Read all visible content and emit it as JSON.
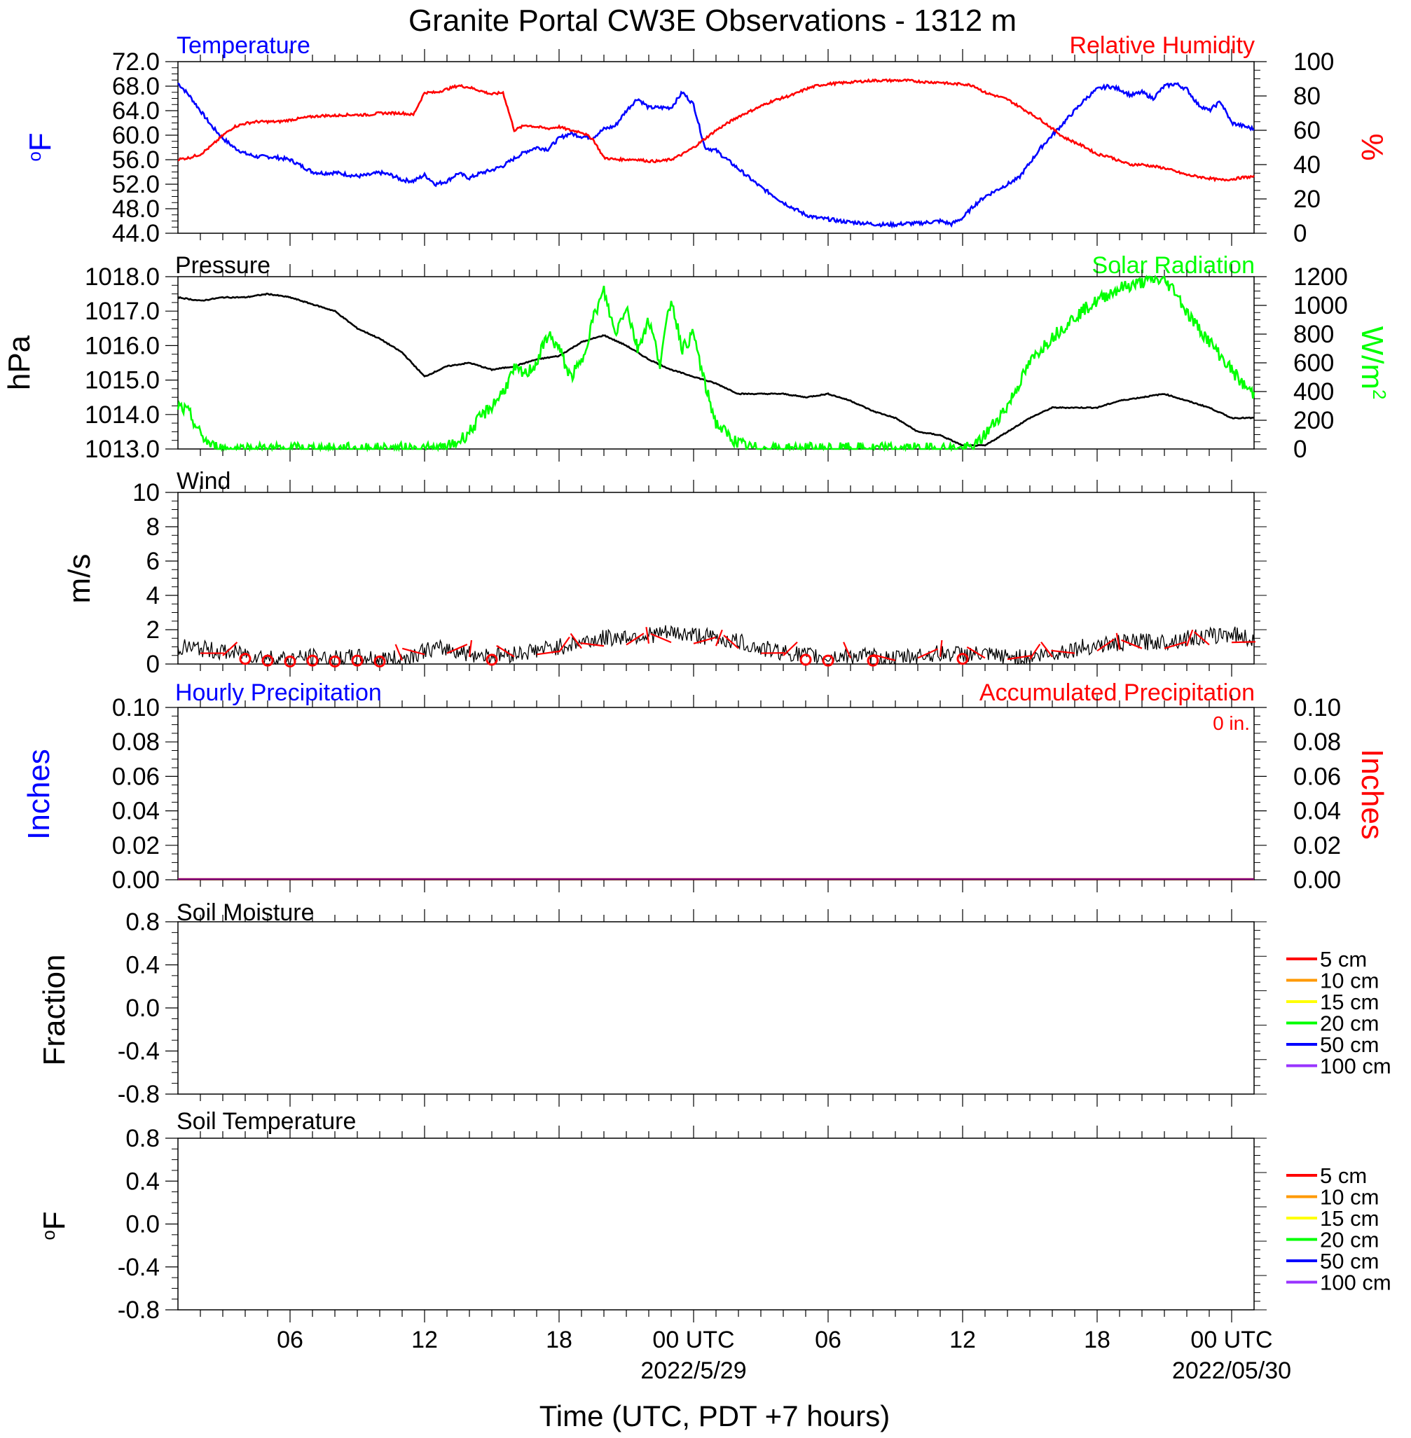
{
  "title": "Granite Portal CW3E Observations - 1312 m",
  "x_axis": {
    "label": "Time (UTC, PDT +7 hours)",
    "range_hours": [
      0,
      48
    ],
    "ticks": [
      {
        "hour": 5,
        "label": "06"
      },
      {
        "hour": 11,
        "label": "12"
      },
      {
        "hour": 17,
        "label": "18"
      },
      {
        "hour": 23,
        "label": "00 UTC"
      },
      {
        "hour": 29,
        "label": "06"
      },
      {
        "hour": 35,
        "label": "12"
      },
      {
        "hour": 41,
        "label": "18"
      },
      {
        "hour": 47,
        "label": "00 UTC"
      }
    ],
    "dates": [
      {
        "hour": 23,
        "label": "2022/5/29"
      },
      {
        "hour": 47,
        "label": "2022/05/30"
      }
    ]
  },
  "colors": {
    "temp": "#0000ff",
    "rh": "#ff0000",
    "pressure": "#000000",
    "solar": "#00ff00",
    "wind": "#000000",
    "barb": "#ff0000"
  },
  "chart_data": [
    {
      "type": "line",
      "panel": "temperature_humidity",
      "left_title": "Temperature",
      "right_title": "Relative Humidity",
      "ylabel_left": "oF",
      "ylabel_right": "%",
      "ylim_left": [
        44,
        72
      ],
      "ylim_right": [
        0,
        100
      ],
      "yticks_left": [
        "72.0",
        "68.0",
        "64.0",
        "60.0",
        "56.0",
        "52.0",
        "48.0",
        "44.0"
      ],
      "yticks_right": [
        "100",
        "80",
        "60",
        "40",
        "20",
        "0"
      ],
      "series": [
        {
          "name": "Temperature",
          "axis": "left",
          "color": "#0000ff",
          "x": [
            0,
            0.5,
            1,
            1.5,
            2,
            2.5,
            3,
            3.5,
            4,
            4.5,
            5,
            5.5,
            6,
            6.5,
            7,
            7.5,
            8,
            8.5,
            9,
            9.5,
            10,
            10.5,
            11,
            11.5,
            12,
            12.5,
            13,
            13.5,
            14,
            14.5,
            15,
            15.5,
            16,
            16.5,
            17,
            17.5,
            18,
            18.5,
            19,
            19.5,
            20,
            20.5,
            21,
            21.5,
            22,
            22.5,
            23,
            23.5,
            24,
            24.5,
            25,
            25.5,
            26,
            26.5,
            27,
            27.5,
            28,
            28.5,
            29,
            29.5,
            30,
            30.5,
            31,
            31.5,
            32,
            32.5,
            33,
            33.5,
            34,
            34.5,
            35,
            35.5,
            36,
            36.5,
            37,
            37.5,
            38,
            38.5,
            39,
            39.5,
            40,
            40.5,
            41,
            41.5,
            42,
            42.5,
            43,
            43.5,
            44,
            44.5,
            45,
            45.5,
            46,
            46.5,
            47,
            47.5,
            48
          ],
          "y": [
            68.5,
            66.5,
            64,
            61.5,
            59.5,
            58,
            57,
            56.5,
            56.5,
            56.3,
            56,
            55,
            54,
            53.8,
            53.9,
            53.6,
            53.3,
            53.5,
            53.9,
            53.5,
            52.7,
            52.5,
            53.5,
            52,
            52.5,
            53.8,
            53,
            53.8,
            54.3,
            55,
            56.2,
            57.3,
            58,
            57.7,
            59.5,
            60.3,
            59.8,
            59.6,
            61,
            61.5,
            64,
            66,
            64.5,
            64.5,
            64.5,
            67,
            65,
            58,
            57.5,
            56,
            54.5,
            53,
            51.5,
            50.3,
            49,
            48,
            47,
            46.5,
            46.3,
            46,
            45.8,
            45.7,
            45.5,
            45.4,
            45.4,
            45.6,
            45.6,
            45.8,
            46,
            45.5,
            46.5,
            48.5,
            50,
            51,
            52,
            53,
            55.5,
            58,
            60,
            62,
            64,
            66,
            67.5,
            68,
            67.5,
            66.5,
            67,
            66,
            68,
            68.4,
            67.5,
            65,
            64,
            65.5,
            62,
            61.5,
            61
          ]
        },
        {
          "name": "Relative Humidity",
          "axis": "right",
          "color": "#ff0000",
          "x": [
            0,
            0.5,
            1,
            1.5,
            2,
            2.5,
            3,
            3.5,
            4,
            4.5,
            5,
            5.5,
            6,
            6.5,
            7,
            7.5,
            8,
            8.5,
            9,
            9.5,
            10,
            10.5,
            11,
            11.5,
            12,
            12.5,
            13,
            13.5,
            14,
            14.5,
            15,
            15.5,
            16,
            16.5,
            17,
            17.5,
            18,
            18.5,
            19,
            19.5,
            20,
            20.5,
            21,
            21.5,
            22,
            22.5,
            23,
            23.5,
            24,
            24.5,
            25,
            25.5,
            26,
            26.5,
            27,
            27.5,
            28,
            28.5,
            29,
            29.5,
            30,
            30.5,
            31,
            31.5,
            32,
            32.5,
            33,
            33.5,
            34,
            34.5,
            35,
            35.5,
            36,
            36.5,
            37,
            37.5,
            38,
            38.5,
            39,
            39.5,
            40,
            40.5,
            41,
            41.5,
            42,
            42.5,
            43,
            43.5,
            44,
            44.5,
            45,
            45.5,
            46,
            46.5,
            47,
            47.5,
            48
          ],
          "y": [
            43,
            44,
            46,
            51,
            57,
            62,
            64,
            65,
            65,
            65,
            66,
            67,
            68,
            68.5,
            68.5,
            69,
            69,
            69,
            70,
            70,
            70,
            69,
            82,
            82,
            84,
            86,
            85,
            83,
            81,
            82,
            60,
            63,
            62,
            61,
            62,
            60,
            59,
            55,
            44,
            43,
            43,
            43,
            42,
            42,
            43,
            46,
            50,
            55,
            60,
            64,
            68,
            71,
            74,
            77,
            79,
            81,
            84,
            86,
            87,
            87.5,
            88,
            88.5,
            89,
            89,
            89,
            89,
            88.5,
            88,
            88,
            87,
            87,
            86,
            82,
            80,
            78,
            74,
            70,
            66,
            61,
            56,
            53,
            50,
            46,
            45,
            42,
            40,
            40,
            39,
            38,
            36,
            34,
            33,
            32,
            31,
            31.5,
            32.5,
            33
          ]
        }
      ]
    },
    {
      "type": "line",
      "panel": "pressure_solar",
      "left_title": "Pressure",
      "right_title": "Solar Radiation",
      "ylabel_left": "hPa",
      "ylabel_right": "W/m2",
      "ylim_left": [
        1013,
        1018
      ],
      "ylim_right": [
        0,
        1200
      ],
      "yticks_left": [
        "1018.0",
        "1017.0",
        "1016.0",
        "1015.0",
        "1014.0",
        "1013.0"
      ],
      "yticks_right": [
        "1200",
        "1000",
        "800",
        "600",
        "400",
        "200",
        "0"
      ],
      "series": [
        {
          "name": "Pressure",
          "axis": "left",
          "color": "#000000",
          "x": [
            0,
            1,
            2,
            3,
            4,
            5,
            6,
            7,
            8,
            9,
            10,
            11,
            12,
            13,
            14,
            15,
            16,
            17,
            18,
            19,
            20,
            21,
            22,
            23,
            24,
            25,
            26,
            27,
            28,
            29,
            30,
            31,
            32,
            33,
            34,
            35,
            36,
            37,
            38,
            39,
            40,
            41,
            42,
            43,
            44,
            45,
            46,
            47,
            48
          ],
          "y": [
            1017.4,
            1017.3,
            1017.4,
            1017.4,
            1017.5,
            1017.4,
            1017.2,
            1017.0,
            1016.5,
            1016.2,
            1015.8,
            1015.1,
            1015.4,
            1015.5,
            1015.3,
            1015.4,
            1015.6,
            1015.7,
            1016.1,
            1016.3,
            1016.0,
            1015.6,
            1015.3,
            1015.1,
            1014.9,
            1014.6,
            1014.6,
            1014.6,
            1014.5,
            1014.6,
            1014.4,
            1014.1,
            1013.9,
            1013.5,
            1013.4,
            1013.1,
            1013.1,
            1013.5,
            1013.9,
            1014.2,
            1014.2,
            1014.2,
            1014.4,
            1014.5,
            1014.6,
            1014.4,
            1014.2,
            1013.9,
            1013.9
          ]
        },
        {
          "name": "Solar Radiation",
          "axis": "right",
          "color": "#00ff00",
          "x": [
            0,
            0.5,
            1,
            1.5,
            2,
            3,
            4,
            5,
            6,
            7,
            8,
            9,
            10,
            11,
            11.5,
            12,
            12.5,
            13,
            13.5,
            14,
            14.5,
            15,
            15.5,
            16,
            16.5,
            17,
            17.5,
            18,
            18.5,
            19,
            19.5,
            20,
            20.5,
            21,
            21.5,
            22,
            22.5,
            23,
            23.5,
            24,
            24.5,
            25,
            25.5,
            26,
            27,
            28,
            29,
            30,
            31,
            32,
            33,
            34,
            35,
            35.5,
            36,
            36.5,
            37,
            37.5,
            38,
            38.5,
            39,
            39.5,
            40,
            40.5,
            41,
            41.5,
            42,
            42.5,
            43,
            43.5,
            44,
            44.5,
            45,
            45.5,
            46,
            46.5,
            47,
            47.5,
            48
          ],
          "y": [
            300,
            250,
            100,
            20,
            0,
            0,
            0,
            0,
            0,
            0,
            0,
            0,
            0,
            0,
            0,
            10,
            50,
            120,
            220,
            300,
            400,
            550,
            520,
            600,
            800,
            700,
            500,
            600,
            900,
            1100,
            800,
            1000,
            700,
            900,
            600,
            1050,
            700,
            800,
            450,
            180,
            100,
            40,
            10,
            0,
            0,
            0,
            0,
            0,
            0,
            0,
            0,
            0,
            0,
            10,
            100,
            200,
            300,
            450,
            600,
            700,
            780,
            850,
            920,
            980,
            1030,
            1080,
            1120,
            1140,
            1160,
            1180,
            1170,
            1100,
            950,
            850,
            750,
            650,
            550,
            450,
            380
          ]
        }
      ]
    },
    {
      "type": "line",
      "panel": "wind",
      "left_title": "Wind",
      "ylabel_left": "m/s",
      "ylim_left": [
        0,
        10
      ],
      "yticks_left": [
        "10",
        "8",
        "6",
        "4",
        "2",
        "0"
      ],
      "series": [
        {
          "name": "Wind",
          "axis": "left",
          "color": "#000000",
          "x": [
            0,
            1,
            2,
            3,
            4,
            5,
            6,
            7,
            8,
            9,
            10,
            11,
            12,
            13,
            14,
            15,
            16,
            17,
            18,
            19,
            20,
            21,
            22,
            23,
            24,
            25,
            26,
            27,
            28,
            29,
            30,
            31,
            32,
            33,
            34,
            35,
            36,
            37,
            38,
            39,
            40,
            41,
            42,
            43,
            44,
            45,
            46,
            47,
            48
          ],
          "y": [
            1.0,
            0.9,
            0.7,
            0.6,
            0.4,
            0.3,
            0.4,
            0.3,
            0.4,
            0.3,
            0.3,
            0.8,
            0.9,
            0.6,
            0.5,
            0.6,
            0.8,
            1.0,
            1.3,
            1.5,
            1.6,
            1.7,
            1.8,
            1.7,
            1.5,
            1.3,
            0.9,
            0.7,
            0.5,
            0.4,
            0.5,
            0.4,
            0.3,
            0.5,
            0.6,
            0.6,
            0.5,
            0.4,
            0.4,
            0.6,
            0.9,
            1.1,
            1.2,
            1.3,
            1.3,
            1.5,
            1.6,
            1.8,
            1.4
          ]
        }
      ]
    },
    {
      "type": "line",
      "panel": "precipitation",
      "left_title": "Hourly Precipitation",
      "right_title": "Accumulated Precipitation",
      "annotation": "0 in.",
      "ylabel_left": "Inches",
      "ylabel_right": "Inches",
      "ylim_left": [
        0,
        0.1
      ],
      "ylim_right": [
        0,
        0.1
      ],
      "yticks_left": [
        "0.10",
        "0.08",
        "0.06",
        "0.04",
        "0.02",
        "0.00"
      ],
      "yticks_right": [
        "0.10",
        "0.08",
        "0.06",
        "0.04",
        "0.02",
        "0.00"
      ],
      "series": [
        {
          "name": "Hourly Precipitation",
          "axis": "left",
          "color": "#0000ff",
          "x": [
            0,
            48
          ],
          "y": [
            0,
            0
          ]
        },
        {
          "name": "Accumulated Precipitation",
          "axis": "right",
          "color": "#ff0000",
          "x": [
            0,
            48
          ],
          "y": [
            0,
            0
          ]
        }
      ]
    },
    {
      "type": "line",
      "panel": "soil_moisture",
      "left_title": "Soil Moisture",
      "ylabel_left": "Fraction",
      "yticks_left": [
        "0.8",
        "0.4",
        "0.0",
        "-0.4",
        "-0.8"
      ],
      "legend": [
        {
          "label": "5 cm",
          "color": "#ff0000"
        },
        {
          "label": "10 cm",
          "color": "#ff9900"
        },
        {
          "label": "15 cm",
          "color": "#ffff00"
        },
        {
          "label": "20 cm",
          "color": "#00ff00"
        },
        {
          "label": "50 cm",
          "color": "#0000ff"
        },
        {
          "label": "100 cm",
          "color": "#9933ff"
        }
      ],
      "series": []
    },
    {
      "type": "line",
      "panel": "soil_temperature",
      "left_title": "Soil Temperature",
      "ylabel_left": "oF",
      "yticks_left": [
        "0.8",
        "0.4",
        "0.0",
        "-0.4",
        "-0.8"
      ],
      "legend": [
        {
          "label": "5 cm",
          "color": "#ff0000"
        },
        {
          "label": "10 cm",
          "color": "#ff9900"
        },
        {
          "label": "15 cm",
          "color": "#ffff00"
        },
        {
          "label": "20 cm",
          "color": "#00ff00"
        },
        {
          "label": "50 cm",
          "color": "#0000ff"
        },
        {
          "label": "100 cm",
          "color": "#9933ff"
        }
      ],
      "series": []
    }
  ]
}
